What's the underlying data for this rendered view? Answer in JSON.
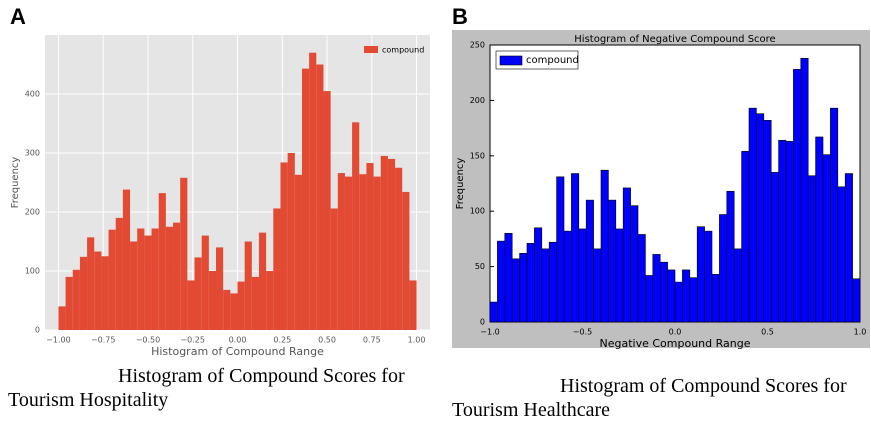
{
  "chart_data": [
    {
      "type": "histogram",
      "label": "A",
      "caption": [
        "Histogram of Compound Scores for",
        "Tourism Hospitality"
      ],
      "xlabel": "Histogram of Compound Range",
      "ylabel": "Frequency",
      "series": [
        {
          "name": "compound",
          "color": "#e24a33",
          "values": [
            40,
            90,
            102,
            124,
            157,
            133,
            125,
            170,
            190,
            238,
            150,
            172,
            160,
            172,
            232,
            175,
            182,
            258,
            84,
            123,
            160,
            100,
            140,
            68,
            62,
            82,
            150,
            90,
            165,
            100,
            206,
            284,
            300,
            263,
            443,
            470,
            450,
            405,
            206,
            266,
            260,
            352,
            264,
            283,
            260,
            295,
            290,
            275,
            234,
            84
          ]
        }
      ],
      "bins": [
        -1,
        -0.96,
        -0.92,
        -0.88,
        -0.84,
        -0.8,
        -0.76,
        -0.72,
        -0.68,
        -0.64,
        -0.6,
        -0.56,
        -0.52,
        -0.48,
        -0.44,
        -0.4,
        -0.36,
        -0.32,
        -0.28,
        -0.24,
        -0.2,
        -0.16,
        -0.12,
        -0.08,
        -0.04,
        0,
        0.04,
        0.08,
        0.12,
        0.16,
        0.2,
        0.24,
        0.28,
        0.32,
        0.36,
        0.4,
        0.44,
        0.48,
        0.52,
        0.56,
        0.6,
        0.64,
        0.68,
        0.72,
        0.76,
        0.8,
        0.84,
        0.88,
        0.92,
        0.96,
        1
      ],
      "xlim": [
        -1.075,
        1.075
      ],
      "ylim": [
        0,
        500
      ],
      "xticks": [
        {
          "value": -1,
          "label": "−1.00"
        },
        {
          "value": -0.75,
          "label": "−0.75"
        },
        {
          "value": -0.5,
          "label": "−0.50"
        },
        {
          "value": -0.25,
          "label": "−0.25"
        },
        {
          "value": 0,
          "label": "0.00"
        },
        {
          "value": 0.25,
          "label": "0.25"
        },
        {
          "value": 0.5,
          "label": "0.50"
        },
        {
          "value": 0.75,
          "label": "0.75"
        },
        {
          "value": 1,
          "label": "1.00"
        }
      ],
      "yticks": [
        0,
        100,
        200,
        300,
        400
      ],
      "grid": true,
      "legend": "upper right"
    },
    {
      "type": "histogram",
      "label": "B",
      "caption": [
        "Histogram of Compound Scores for",
        "Tourism Healthcare"
      ],
      "title": "Histogram of Negative Compound Score",
      "xlabel": "Negative Compound Range",
      "ylabel": "Frequency",
      "series": [
        {
          "name": "compound",
          "color": "#0000ff",
          "values": [
            18,
            73,
            80,
            57,
            62,
            71,
            85,
            66,
            72,
            131,
            82,
            134,
            84,
            110,
            66,
            137,
            110,
            84,
            121,
            105,
            79,
            42,
            61,
            54,
            47,
            36,
            47,
            40,
            86,
            82,
            43,
            97,
            118,
            66,
            154,
            193,
            188,
            182,
            135,
            164,
            163,
            228,
            238,
            132,
            167,
            151,
            193,
            122,
            134,
            39
          ]
        }
      ],
      "bins": [
        -1,
        -0.96,
        -0.92,
        -0.88,
        -0.84,
        -0.8,
        -0.76,
        -0.72,
        -0.68,
        -0.64,
        -0.6,
        -0.56,
        -0.52,
        -0.48,
        -0.44,
        -0.4,
        -0.36,
        -0.32,
        -0.28,
        -0.24,
        -0.2,
        -0.16,
        -0.12,
        -0.08,
        -0.04,
        0,
        0.04,
        0.08,
        0.12,
        0.16,
        0.2,
        0.24,
        0.28,
        0.32,
        0.36,
        0.4,
        0.44,
        0.48,
        0.52,
        0.56,
        0.6,
        0.64,
        0.68,
        0.72,
        0.76,
        0.8,
        0.84,
        0.88,
        0.92,
        0.96,
        1
      ],
      "xlim": [
        -1,
        1
      ],
      "ylim": [
        0,
        250
      ],
      "xticks": [
        {
          "value": -1,
          "label": "−1.0"
        },
        {
          "value": -0.5,
          "label": "−0.5"
        },
        {
          "value": 0,
          "label": "0.0"
        },
        {
          "value": 0.5,
          "label": "0.5"
        },
        {
          "value": 1,
          "label": "1.0"
        }
      ],
      "yticks": [
        0,
        50,
        100,
        150,
        200,
        250
      ],
      "grid": false,
      "legend": "upper left"
    }
  ]
}
